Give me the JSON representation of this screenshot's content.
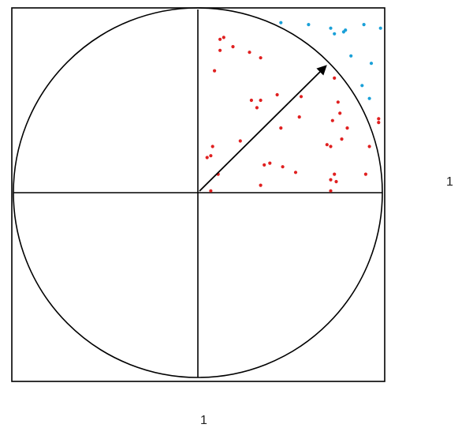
{
  "labels": {
    "side_length": "1",
    "bottom_length": "1"
  },
  "colors": {
    "outline": "#000000",
    "inside_points": "#e02020",
    "outside_points": "#1aa0d8"
  },
  "icons": {
    "radius": "arrow-icon"
  },
  "points_inside": [
    [
      0.12,
      0.83
    ],
    [
      0.14,
      0.84
    ],
    [
      0.19,
      0.79
    ],
    [
      0.12,
      0.77
    ],
    [
      0.28,
      0.76
    ],
    [
      0.34,
      0.73
    ],
    [
      0.09,
      0.66
    ],
    [
      0.43,
      0.53
    ],
    [
      0.32,
      0.46
    ],
    [
      0.34,
      0.5
    ],
    [
      0.29,
      0.5
    ],
    [
      0.45,
      0.35
    ],
    [
      0.55,
      0.41
    ],
    [
      0.56,
      0.52
    ],
    [
      0.7,
      0.26
    ],
    [
      0.76,
      0.49
    ],
    [
      0.72,
      0.25
    ],
    [
      0.78,
      0.29
    ],
    [
      0.73,
      0.39
    ],
    [
      0.81,
      0.35
    ],
    [
      0.98,
      0.4
    ],
    [
      0.98,
      0.38
    ],
    [
      0.93,
      0.25
    ],
    [
      0.91,
      0.1
    ],
    [
      0.46,
      0.14
    ],
    [
      0.39,
      0.16
    ],
    [
      0.36,
      0.15
    ],
    [
      0.23,
      0.28
    ],
    [
      0.08,
      0.25
    ],
    [
      0.05,
      0.19
    ],
    [
      0.07,
      0.2
    ],
    [
      0.07,
      0.01
    ],
    [
      0.34,
      0.04
    ],
    [
      0.53,
      0.11
    ],
    [
      0.74,
      0.1
    ],
    [
      0.75,
      0.06
    ],
    [
      0.72,
      0.01
    ],
    [
      0.72,
      0.07
    ],
    [
      0.11,
      0.1
    ],
    [
      0.77,
      0.43
    ],
    [
      0.74,
      0.62
    ]
  ],
  "points_outside": [
    [
      0.45,
      0.92
    ],
    [
      0.6,
      0.91
    ],
    [
      0.72,
      0.89
    ],
    [
      0.79,
      0.87
    ],
    [
      0.8,
      0.88
    ],
    [
      0.9,
      0.91
    ],
    [
      0.99,
      0.89
    ],
    [
      0.74,
      0.86
    ],
    [
      0.83,
      0.74
    ],
    [
      0.94,
      0.7
    ],
    [
      0.89,
      0.58
    ],
    [
      0.93,
      0.51
    ]
  ]
}
